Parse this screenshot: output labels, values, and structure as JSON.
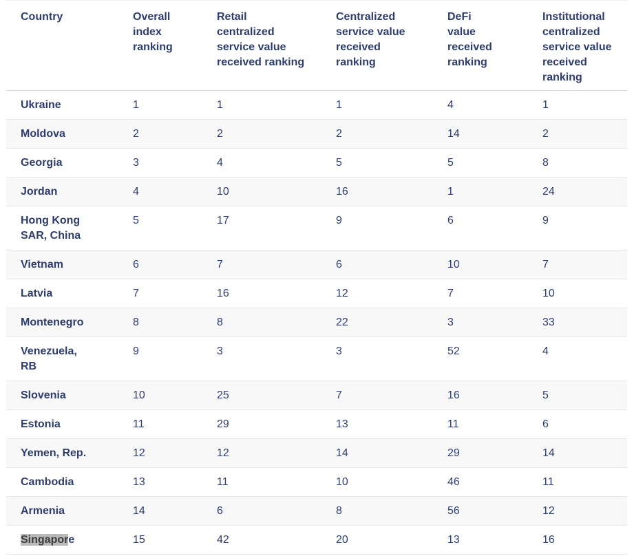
{
  "colors": {
    "text_navy": "#2d3d6d",
    "stripe": "#f8f8f9",
    "divider": "#e7e7e7",
    "header_divider": "#dcdcdc",
    "selection_bg": "#b9b9b9",
    "selection_text": "#3a3a3a",
    "page_bg": "#ffffff"
  },
  "chart_data": {
    "type": "table",
    "title": "",
    "legend": "none",
    "grid": "horizontal-row-dividers",
    "columns": [
      "Country",
      "Overall index ranking",
      "Retail centralized service value received ranking",
      "Centralized service value received ranking",
      "DeFi value received ranking",
      "Institutional centralized service value received ranking"
    ],
    "rows": [
      {
        "country": "Ukraine",
        "values": [
          1,
          1,
          1,
          4,
          1
        ]
      },
      {
        "country": "Moldova",
        "values": [
          2,
          2,
          2,
          14,
          2
        ]
      },
      {
        "country": "Georgia",
        "values": [
          3,
          4,
          5,
          5,
          8
        ]
      },
      {
        "country": "Jordan",
        "values": [
          4,
          10,
          16,
          1,
          24
        ]
      },
      {
        "country": "Hong Kong SAR, China",
        "country_lines": [
          "Hong Kong",
          "SAR, China"
        ],
        "values": [
          5,
          17,
          9,
          6,
          9
        ]
      },
      {
        "country": "Vietnam",
        "values": [
          6,
          7,
          6,
          10,
          7
        ]
      },
      {
        "country": "Latvia",
        "values": [
          7,
          16,
          12,
          7,
          10
        ]
      },
      {
        "country": "Montenegro",
        "values": [
          8,
          8,
          22,
          3,
          33
        ]
      },
      {
        "country": "Venezuela, RB",
        "country_lines": [
          "Venezuela,",
          "RB"
        ],
        "values": [
          9,
          3,
          3,
          52,
          4
        ]
      },
      {
        "country": "Slovenia",
        "values": [
          10,
          25,
          7,
          16,
          5
        ]
      },
      {
        "country": "Estonia",
        "values": [
          11,
          29,
          13,
          11,
          6
        ]
      },
      {
        "country": "Yemen, Rep.",
        "values": [
          12,
          12,
          14,
          29,
          14
        ]
      },
      {
        "country": "Cambodia",
        "values": [
          13,
          11,
          10,
          46,
          11
        ]
      },
      {
        "country": "Armenia",
        "values": [
          14,
          6,
          8,
          56,
          12
        ]
      },
      {
        "country": "Singapore",
        "values": [
          15,
          42,
          20,
          13,
          16
        ],
        "selection": {
          "selected_text": "Singapor"
        }
      }
    ]
  }
}
